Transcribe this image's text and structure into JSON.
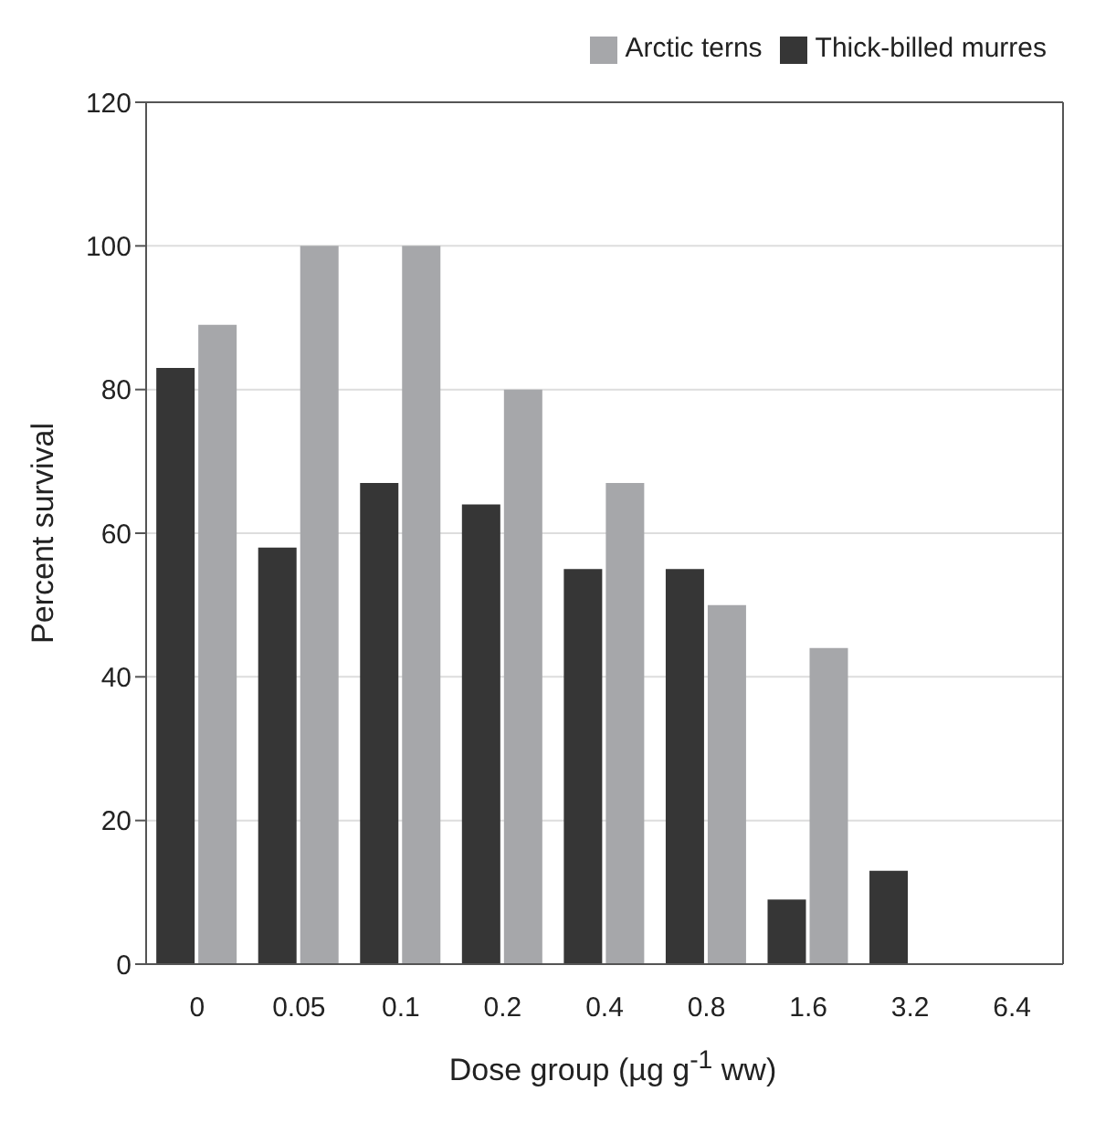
{
  "chart_data": {
    "type": "bar",
    "xlabel": "Dose group (µg g$^{-1}$ ww)",
    "ylabel": "Percent survival",
    "categories": [
      "0",
      "0.05",
      "0.1",
      "0.2",
      "0.4",
      "0.8",
      "1.6",
      "3.2",
      "6.4"
    ],
    "series": [
      {
        "name": "Thick-billed murres",
        "color": "#363636",
        "values": [
          83,
          58,
          67,
          64,
          55,
          55,
          9,
          13,
          0
        ]
      },
      {
        "name": "Arctic terns",
        "color": "#a6a7aa",
        "values": [
          89,
          100,
          100,
          80,
          67,
          50,
          44,
          0,
          0
        ]
      }
    ],
    "ylim": [
      0,
      120
    ],
    "yticks": [
      0,
      20,
      40,
      60,
      80,
      100,
      120
    ],
    "grid": "y",
    "legend": "top right"
  }
}
